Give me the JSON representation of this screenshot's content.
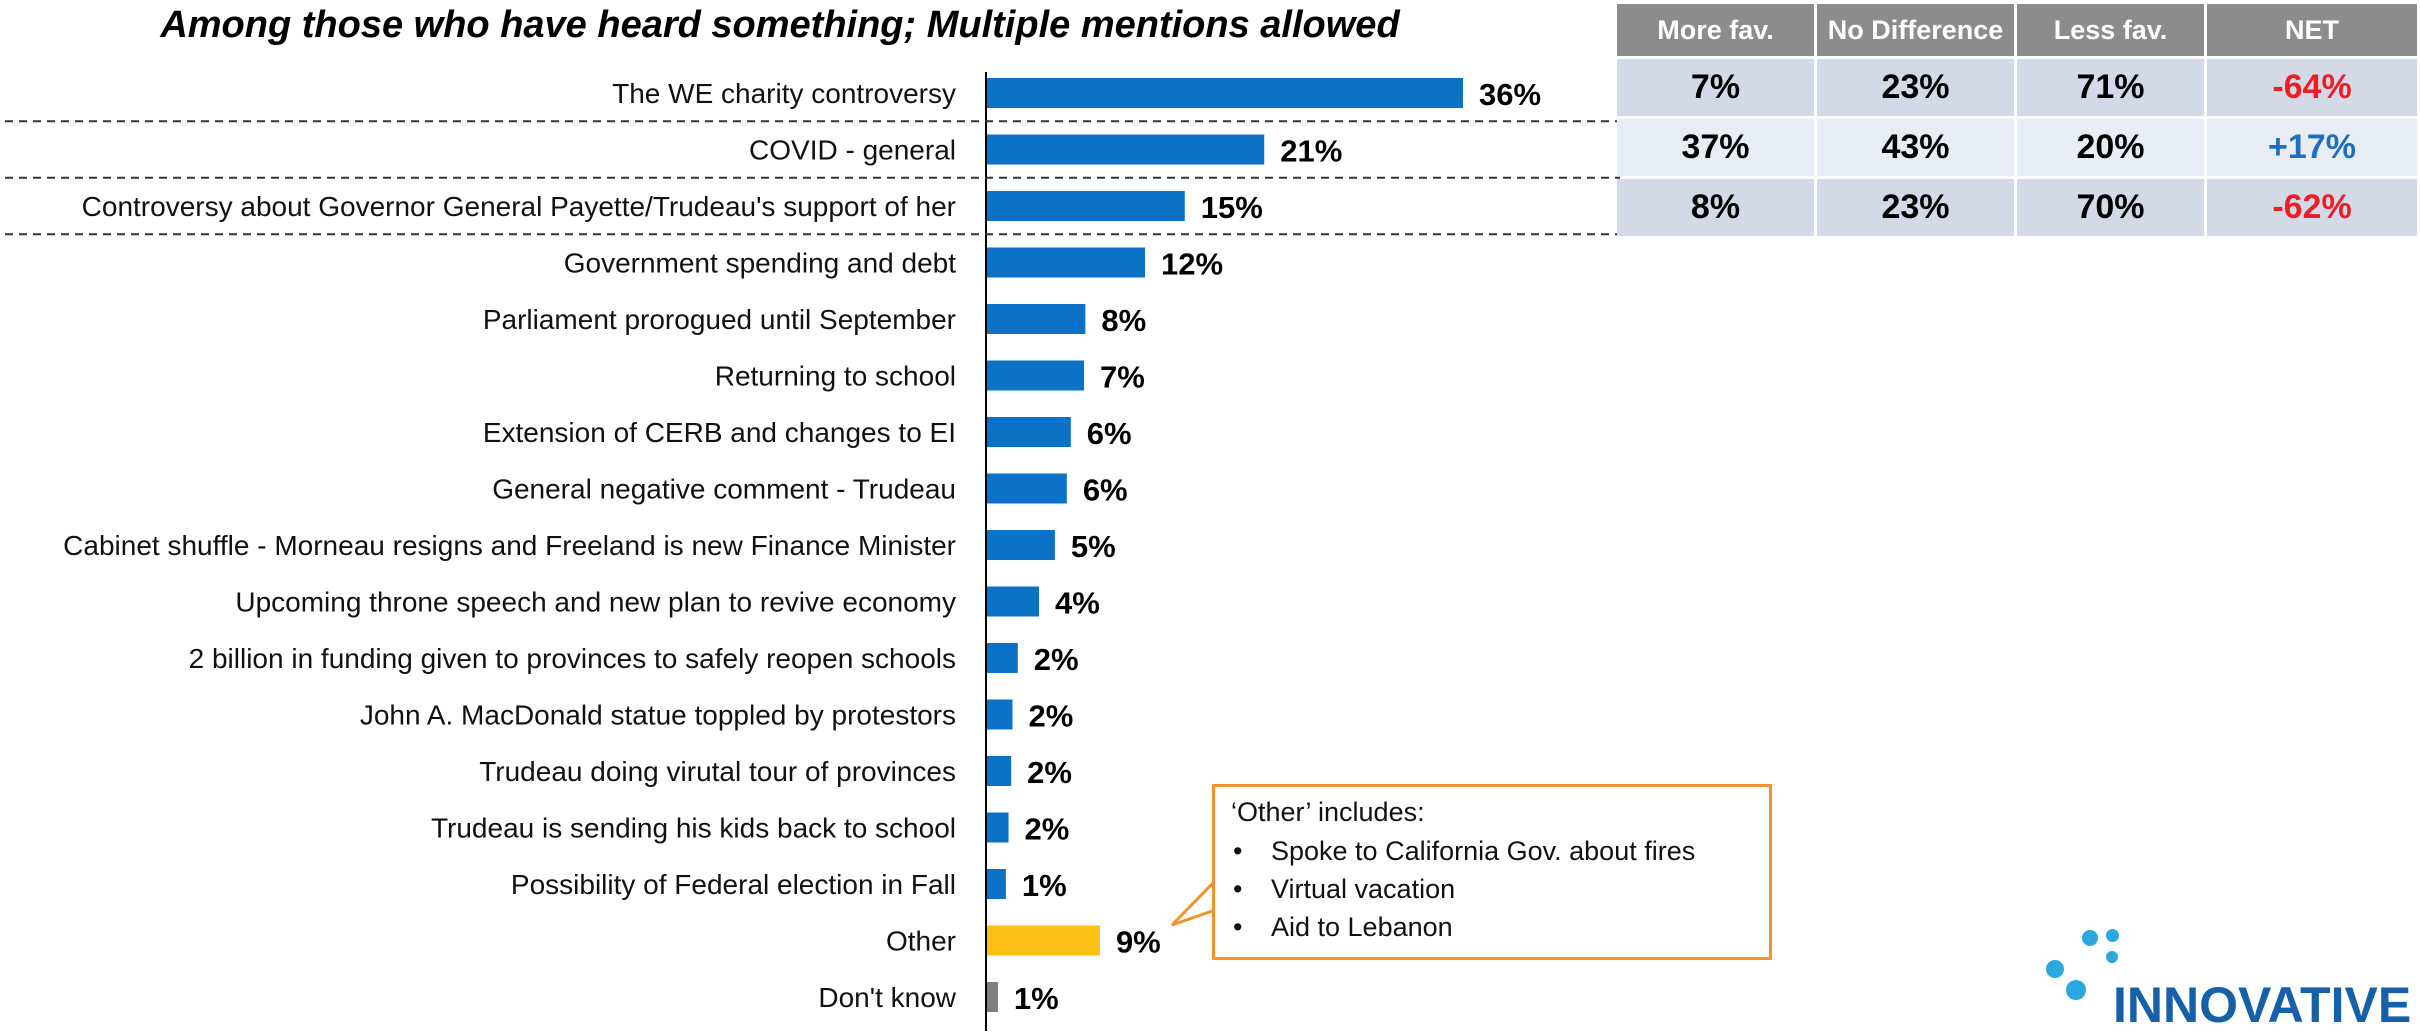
{
  "subtitle": "Among those who have heard something; Multiple mentions allowed",
  "chart_data": {
    "type": "bar",
    "orientation": "horizontal",
    "categories": [
      "The WE charity controversy",
      "COVID - general",
      "Controversy about Governor General Payette/Trudeau's support of her",
      "Government spending and debt",
      "Parliament prorogued until September",
      "Returning to school",
      "Extension of CERB and changes to EI",
      "General negative comment - Trudeau",
      "Cabinet shuffle - Morneau resigns and Freeland is new Finance Minister",
      "Upcoming throne speech and new plan to revive economy",
      "2 billion in funding given to provinces to safely reopen schools",
      "John A. MacDonald statue toppled by protestors",
      "Trudeau doing virutal tour of provinces",
      "Trudeau is sending his kids back to school",
      "Possibility of Federal election in Fall",
      "Other",
      "Don't know"
    ],
    "values": [
      36,
      21,
      15,
      12,
      8,
      7,
      6,
      6,
      5,
      4,
      2,
      2,
      2,
      2,
      1,
      9,
      1
    ],
    "value_labels": [
      "36%",
      "21%",
      "15%",
      "12%",
      "8%",
      "7%",
      "6%",
      "6%",
      "5%",
      "4%",
      "2%",
      "2%",
      "2%",
      "2%",
      "1%",
      "9%",
      "1%"
    ],
    "bar_values_exact": [
      36,
      21,
      15,
      12,
      7.5,
      7.4,
      6.4,
      6.1,
      5.2,
      4.0,
      2.4,
      2.0,
      1.9,
      1.7,
      1.5,
      8.6,
      0.9
    ],
    "bar_colors": [
      "#0b72c7",
      "#0b72c7",
      "#0b72c7",
      "#0b72c7",
      "#0b72c7",
      "#0b72c7",
      "#0b72c7",
      "#0b72c7",
      "#0b72c7",
      "#0b72c7",
      "#0b72c7",
      "#0b72c7",
      "#0b72c7",
      "#0b72c7",
      "#0b72c7",
      "#fcbf13",
      "#7f7f7f"
    ],
    "xlim": [
      0,
      40
    ],
    "grid": false,
    "legend": "none",
    "dashed_separators_after": [
      0,
      1,
      2
    ]
  },
  "favourability_table": {
    "headers": [
      "More fav.",
      "No Difference",
      "Less fav.",
      "NET"
    ],
    "rows": [
      {
        "more": "7%",
        "nodiff": "23%",
        "less": "71%",
        "net": "-64%"
      },
      {
        "more": "37%",
        "nodiff": "43%",
        "less": "20%",
        "net": "+17%"
      },
      {
        "more": "8%",
        "nodiff": "23%",
        "less": "70%",
        "net": "-62%"
      }
    ]
  },
  "callout": {
    "title": "‘Other’ includes:",
    "items": [
      "Spoke to California Gov. about fires",
      "Virtual vacation",
      "Aid to Lebanon"
    ]
  },
  "logo": {
    "text": "INNOVATIVE"
  },
  "colors": {
    "bar_primary": "#0b72c7",
    "bar_other": "#fcbf13",
    "bar_dontknow": "#7f7f7f",
    "net_negative": "#ee1c25",
    "net_positive": "#1f6fc0",
    "header_gray": "#8c8c8c",
    "callout_border": "#f2922a"
  }
}
